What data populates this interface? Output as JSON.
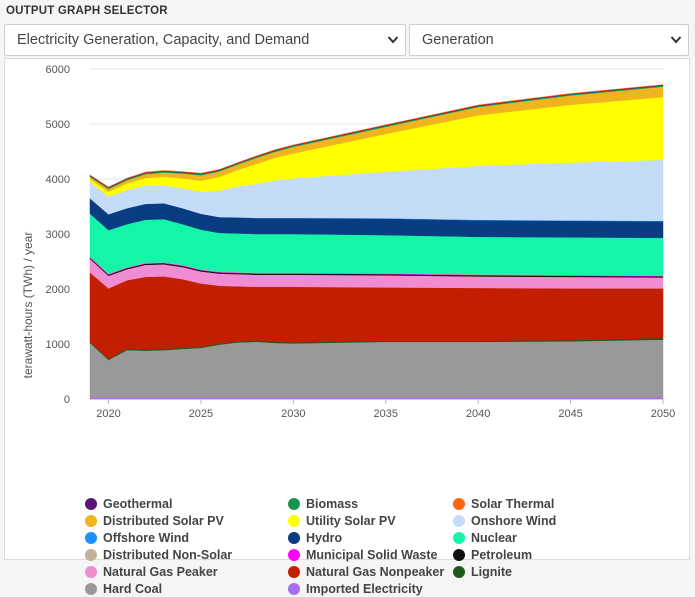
{
  "header": {
    "title": "OUTPUT GRAPH SELECTOR"
  },
  "selectors": {
    "graph": {
      "value": "Electricity Generation, Capacity, and Demand"
    },
    "view": {
      "value": "Generation"
    }
  },
  "chart_data": {
    "type": "area",
    "stacked": true,
    "title": "",
    "xlabel": "",
    "ylabel": "terawatt-hours (TWh) / year",
    "xlim": [
      2019,
      2050
    ],
    "ylim": [
      0,
      6000
    ],
    "xticks": [
      2020,
      2025,
      2030,
      2035,
      2040,
      2045,
      2050
    ],
    "yticks": [
      0,
      1000,
      2000,
      3000,
      4000,
      5000,
      6000
    ],
    "grid": "horizontal",
    "legend_position": "bottom",
    "x": [
      2019,
      2020,
      2021,
      2022,
      2023,
      2024,
      2025,
      2026,
      2027,
      2028,
      2029,
      2030,
      2035,
      2040,
      2045,
      2050
    ],
    "series": [
      {
        "name": "Imported Electricity",
        "color": "#a66ef0",
        "values": [
          30,
          30,
          30,
          30,
          30,
          30,
          30,
          30,
          30,
          30,
          30,
          30,
          30,
          30,
          30,
          30
        ]
      },
      {
        "name": "Hard Coal",
        "color": "#999999",
        "values": [
          990,
          680,
          860,
          850,
          860,
          880,
          900,
          960,
          1000,
          1010,
          990,
          980,
          1010,
          1010,
          1020,
          1050
        ]
      },
      {
        "name": "Lignite",
        "color": "#1e5a1e",
        "values": [
          20,
          20,
          20,
          20,
          20,
          20,
          20,
          20,
          20,
          20,
          20,
          20,
          20,
          20,
          20,
          30
        ]
      },
      {
        "name": "Natural Gas Nonpeaker",
        "color": "#c41e00",
        "values": [
          1260,
          1280,
          1250,
          1320,
          1320,
          1250,
          1150,
          1050,
          1000,
          980,
          1000,
          1010,
          970,
          960,
          940,
          900
        ]
      },
      {
        "name": "Natural Gas Peaker",
        "color": "#f08cd2",
        "values": [
          250,
          230,
          200,
          220,
          220,
          220,
          220,
          220,
          220,
          220,
          220,
          220,
          220,
          210,
          210,
          200
        ]
      },
      {
        "name": "Petroleum",
        "color": "#111111",
        "values": [
          20,
          20,
          20,
          20,
          20,
          20,
          20,
          20,
          20,
          20,
          20,
          20,
          20,
          20,
          20,
          20
        ]
      },
      {
        "name": "Municipal Solid Waste",
        "color": "#ff00ff",
        "values": [
          10,
          10,
          10,
          10,
          10,
          10,
          10,
          10,
          10,
          10,
          10,
          10,
          10,
          10,
          10,
          10
        ]
      },
      {
        "name": "Distributed Non-Solar",
        "color": "#c2b299",
        "values": [
          10,
          10,
          10,
          10,
          10,
          10,
          10,
          10,
          10,
          10,
          10,
          10,
          10,
          10,
          10,
          10
        ]
      },
      {
        "name": "Nuclear",
        "color": "#14f5a8",
        "values": [
          780,
          790,
          780,
          780,
          780,
          740,
          720,
          700,
          700,
          700,
          700,
          700,
          690,
          680,
          680,
          680
        ]
      },
      {
        "name": "Hydro",
        "color": "#0a3c82",
        "values": [
          280,
          290,
          290,
          290,
          290,
          290,
          290,
          290,
          290,
          290,
          290,
          290,
          300,
          300,
          300,
          300
        ]
      },
      {
        "name": "Offshore Wind",
        "color": "#1e90ff",
        "values": [
          0,
          0,
          0,
          0,
          0,
          0,
          0,
          0,
          5,
          5,
          5,
          5,
          10,
          10,
          10,
          10
        ]
      },
      {
        "name": "Onshore Wind",
        "color": "#c5dcf8",
        "values": [
          300,
          320,
          330,
          330,
          330,
          360,
          400,
          480,
          560,
          620,
          680,
          720,
          840,
          980,
          1050,
          1110
        ]
      },
      {
        "name": "Utility Solar PV",
        "color": "#ffff00",
        "values": [
          50,
          90,
          120,
          140,
          150,
          180,
          200,
          250,
          300,
          360,
          410,
          450,
          690,
          920,
          1050,
          1140
        ]
      },
      {
        "name": "Distributed Solar PV",
        "color": "#f0b41e",
        "values": [
          40,
          50,
          60,
          70,
          80,
          90,
          100,
          100,
          100,
          110,
          110,
          120,
          130,
          150,
          170,
          190
        ]
      },
      {
        "name": "Biomass",
        "color": "#149650",
        "values": [
          20,
          20,
          20,
          20,
          20,
          20,
          20,
          20,
          20,
          20,
          20,
          20,
          20,
          20,
          20,
          20
        ]
      },
      {
        "name": "Geothermal",
        "color": "#5a1478",
        "values": [
          10,
          10,
          10,
          10,
          10,
          10,
          10,
          10,
          10,
          10,
          10,
          10,
          10,
          10,
          10,
          10
        ]
      },
      {
        "name": "Solar Thermal",
        "color": "#ff6414",
        "values": [
          5,
          5,
          5,
          5,
          5,
          5,
          5,
          5,
          5,
          5,
          5,
          5,
          5,
          5,
          5,
          5
        ]
      }
    ],
    "legend": [
      {
        "name": "Geothermal",
        "color": "#5a1478"
      },
      {
        "name": "Biomass",
        "color": "#149650"
      },
      {
        "name": "Solar Thermal",
        "color": "#ff6414"
      },
      {
        "name": "Distributed Solar PV",
        "color": "#f0b41e"
      },
      {
        "name": "Utility Solar PV",
        "color": "#ffff00"
      },
      {
        "name": "Onshore Wind",
        "color": "#c5dcf8"
      },
      {
        "name": "Offshore Wind",
        "color": "#1e90ff"
      },
      {
        "name": "Hydro",
        "color": "#0a3c82"
      },
      {
        "name": "Nuclear",
        "color": "#14f5a8"
      },
      {
        "name": "Distributed Non-Solar",
        "color": "#c2b299"
      },
      {
        "name": "Municipal Solid Waste",
        "color": "#ff00ff"
      },
      {
        "name": "Petroleum",
        "color": "#111111"
      },
      {
        "name": "Natural Gas Peaker",
        "color": "#f08cd2"
      },
      {
        "name": "Natural Gas Nonpeaker",
        "color": "#c41e00"
      },
      {
        "name": "Lignite",
        "color": "#1e5a1e"
      },
      {
        "name": "Hard Coal",
        "color": "#999999"
      },
      {
        "name": "Imported Electricity",
        "color": "#a66ef0"
      }
    ]
  }
}
